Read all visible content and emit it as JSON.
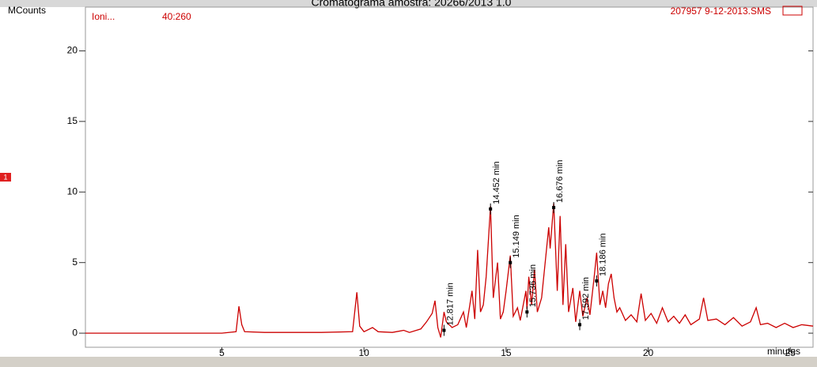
{
  "chart_data": {
    "type": "line",
    "title": "Cromatograma amostra: 20266/2013 1.0",
    "y_label": "MCounts",
    "x_label": "minutes",
    "trace_name": "Ioni...",
    "ion_range": "40:260",
    "file_name": "207957 9-12-2013.SMS",
    "badge": "1",
    "xlim": [
      0.2,
      25.8
    ],
    "ylim": [
      -1,
      23.1
    ],
    "xticks": [
      5,
      10,
      15,
      20,
      25
    ],
    "yticks": [
      0,
      5,
      10,
      15,
      20
    ],
    "series": [
      {
        "color": "#cc0000",
        "x": [
          0.2,
          5.0,
          5.5,
          5.6,
          5.7,
          5.8,
          6.5,
          8.5,
          9.6,
          9.75,
          9.85,
          10.0,
          10.3,
          10.5,
          11.0,
          11.4,
          11.6,
          12.0,
          12.2,
          12.4,
          12.5,
          12.6,
          12.7,
          12.817,
          12.9,
          13.1,
          13.3,
          13.5,
          13.6,
          13.8,
          13.9,
          14.0,
          14.1,
          14.2,
          14.3,
          14.452,
          14.55,
          14.7,
          14.8,
          14.9,
          15.0,
          15.149,
          15.25,
          15.4,
          15.5,
          15.7,
          15.736,
          15.8,
          15.9,
          16.0,
          16.1,
          16.25,
          16.4,
          16.5,
          16.55,
          16.676,
          16.8,
          16.9,
          17.0,
          17.1,
          17.2,
          17.35,
          17.45,
          17.592,
          17.7,
          17.85,
          17.95,
          18.1,
          18.186,
          18.3,
          18.4,
          18.5,
          18.6,
          18.7,
          18.8,
          18.9,
          19.0,
          19.2,
          19.4,
          19.6,
          19.75,
          19.9,
          20.1,
          20.3,
          20.5,
          20.7,
          20.9,
          21.1,
          21.3,
          21.5,
          21.8,
          21.95,
          22.1,
          22.4,
          22.7,
          23.0,
          23.3,
          23.6,
          23.8,
          23.95,
          24.2,
          24.5,
          24.8,
          25.1,
          25.4,
          25.8
        ],
        "values": [
          0,
          0,
          0.1,
          1.9,
          0.6,
          0.1,
          0.05,
          0.05,
          0.1,
          2.9,
          0.5,
          0.1,
          0.4,
          0.1,
          0.05,
          0.2,
          0.05,
          0.3,
          0.8,
          1.4,
          2.3,
          0.4,
          -0.3,
          1.5,
          0.8,
          0.4,
          0.6,
          1.5,
          0.4,
          3.0,
          1.0,
          5.9,
          1.5,
          2.0,
          4.0,
          9.0,
          2.5,
          5.0,
          1.0,
          1.5,
          3.0,
          5.5,
          1.2,
          1.8,
          0.9,
          3.0,
          1.7,
          4.0,
          2.0,
          4.5,
          1.5,
          2.5,
          5.5,
          7.5,
          6.0,
          9.2,
          3.0,
          8.3,
          2.0,
          6.3,
          1.5,
          3.2,
          0.8,
          3.0,
          1.2,
          2.5,
          1.3,
          4.0,
          5.7,
          2.0,
          3.0,
          1.8,
          3.5,
          4.2,
          2.5,
          1.5,
          1.8,
          0.9,
          1.3,
          0.8,
          2.8,
          0.9,
          1.4,
          0.7,
          1.8,
          0.8,
          1.2,
          0.7,
          1.3,
          0.6,
          1.0,
          2.5,
          0.9,
          1.0,
          0.6,
          1.1,
          0.5,
          0.8,
          1.8,
          0.6,
          0.7,
          0.4,
          0.7,
          0.4,
          0.6,
          0.5
        ]
      }
    ],
    "annotations": [
      {
        "x": 12.817,
        "y": 0.2,
        "label": "12.817 min"
      },
      {
        "x": 14.452,
        "y": 8.8,
        "label": "14.452 min"
      },
      {
        "x": 15.149,
        "y": 5.0,
        "label": "15.149 min"
      },
      {
        "x": 15.736,
        "y": 1.5,
        "label": "15.736 min"
      },
      {
        "x": 16.676,
        "y": 8.9,
        "label": "16.676 min"
      },
      {
        "x": 17.592,
        "y": 0.6,
        "label": "17.592 min"
      },
      {
        "x": 18.186,
        "y": 3.7,
        "label": "18.186 min"
      }
    ]
  }
}
